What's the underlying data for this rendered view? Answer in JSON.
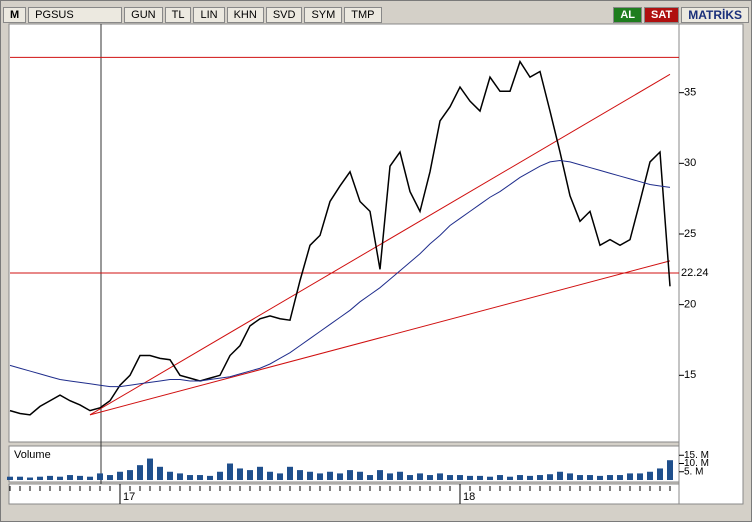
{
  "toolbar": {
    "logo": "M",
    "symbol": "PGSUS",
    "buttons": [
      "GUN",
      "TL",
      "LIN",
      "KHN",
      "SVD",
      "SYM",
      "TMP"
    ],
    "buy": "AL",
    "sell": "SAT",
    "brand": "MATRİKS"
  },
  "chart_data": {
    "type": "line",
    "categories": [
      null,
      null,
      null,
      null,
      null,
      null,
      null,
      null,
      null,
      null,
      null,
      "17",
      null,
      null,
      null,
      null,
      null,
      null,
      null,
      null,
      null,
      null,
      null,
      null,
      null,
      null,
      null,
      null,
      null,
      null,
      null,
      null,
      null,
      null,
      null,
      null,
      null,
      null,
      null,
      null,
      null,
      null,
      null,
      null,
      null,
      "18",
      null,
      null,
      null,
      null,
      null,
      null,
      null,
      null,
      null,
      null,
      null,
      null,
      null,
      null,
      null,
      null,
      null,
      null,
      null,
      null,
      null
    ],
    "series": [
      {
        "color": "#000000",
        "values": [
          12.5,
          12.3,
          12.2,
          12.8,
          13.2,
          13.6,
          13.2,
          12.9,
          12.5,
          12.7,
          13.2,
          14.3,
          15.0,
          16.4,
          16.4,
          16.2,
          16.1,
          15.0,
          14.8,
          14.6,
          14.8,
          15.0,
          16.4,
          17.1,
          18.5,
          19.0,
          19.2,
          19.0,
          18.9,
          21.7,
          24.2,
          24.9,
          27.3,
          28.4,
          29.4,
          27.3,
          26.6,
          22.5,
          29.8,
          30.8,
          28.0,
          26.6,
          29.4,
          33.0,
          34.0,
          35.4,
          34.4,
          33.7,
          36.1,
          35.1,
          35.1,
          37.2,
          36.1,
          36.5,
          33.7,
          30.8,
          27.7,
          25.9,
          26.6,
          24.2,
          24.6,
          24.2,
          24.6,
          27.3,
          30.1,
          30.8,
          21.3
        ]
      },
      {
        "color": "#1f2d8c",
        "values": [
          15.7,
          15.5,
          15.3,
          15.1,
          14.9,
          14.7,
          14.6,
          14.5,
          14.4,
          14.3,
          14.2,
          14.2,
          14.3,
          14.4,
          14.5,
          14.6,
          14.7,
          14.7,
          14.6,
          14.6,
          14.7,
          14.8,
          14.9,
          15.1,
          15.3,
          15.5,
          15.8,
          16.2,
          16.6,
          17.1,
          17.6,
          18.1,
          18.6,
          19.1,
          19.6,
          20.2,
          20.7,
          21.2,
          21.8,
          22.4,
          23.0,
          23.6,
          24.3,
          24.9,
          25.6,
          26.1,
          26.6,
          27.1,
          27.6,
          28.0,
          28.5,
          29.0,
          29.4,
          29.8,
          30.1,
          30.2,
          30.1,
          29.9,
          29.7,
          29.5,
          29.3,
          29.1,
          28.9,
          28.7,
          28.5,
          28.4,
          28.3
        ]
      }
    ],
    "ylim": [
      10.28,
      39.86
    ],
    "yticks": [
      15,
      20,
      25,
      30,
      35
    ],
    "price_label": 22.24,
    "line_color": "#d01010",
    "horizontal_lines": [
      37.5,
      22.24
    ],
    "trendlines": [
      {
        "from": [
          8,
          12.2
        ],
        "to": [
          66,
          36.3
        ]
      },
      {
        "from": [
          8,
          12.2
        ],
        "to": [
          66,
          23.1
        ]
      }
    ],
    "volume": {
      "label": "Volume",
      "color": "#1f4f8c",
      "ylim": [
        0,
        19.4
      ],
      "yticks": [
        {
          "value": 15,
          "label": "15. M"
        },
        {
          "value": 10,
          "label": "10. M"
        },
        {
          "value": 5,
          "label": "5. M"
        }
      ],
      "values": [
        2,
        2,
        1.5,
        2,
        2.5,
        2,
        3,
        2.5,
        2,
        4,
        3,
        5,
        6,
        9,
        13,
        8,
        5,
        4,
        3,
        3,
        2.5,
        5,
        10,
        7,
        6,
        8,
        5,
        4,
        8,
        6,
        5,
        4,
        5,
        4,
        6,
        5,
        3,
        6,
        4,
        5,
        3,
        4,
        3,
        4,
        3,
        3,
        2.5,
        2.5,
        2,
        3,
        2,
        3,
        2.5,
        3,
        3.5,
        5,
        4,
        3,
        3,
        2.5,
        3,
        3,
        4,
        4,
        5,
        7,
        12
      ]
    }
  }
}
